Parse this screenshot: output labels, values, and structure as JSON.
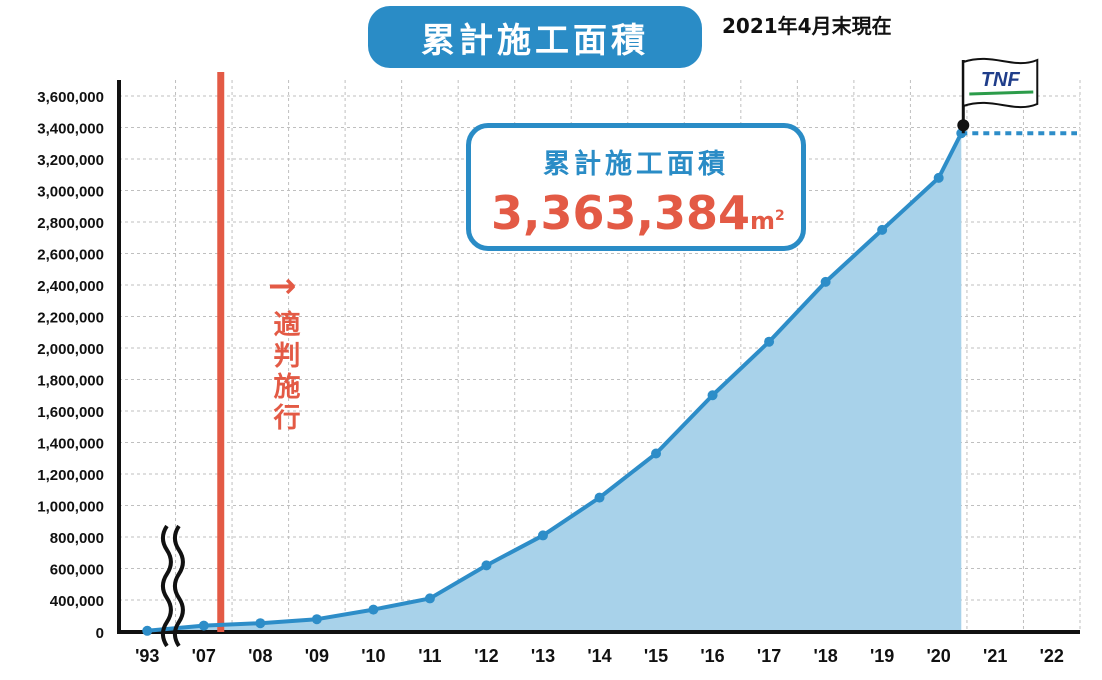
{
  "header": {
    "title": "累計施工面積",
    "as_of": "2021年4月末現在"
  },
  "callout": {
    "label": "累計施工面積",
    "value": "3,363,384",
    "unit": "m",
    "unit_sup": "2"
  },
  "annotation": {
    "arrow": "→",
    "chars": [
      "適",
      "判",
      "施",
      "行"
    ]
  },
  "flag": {
    "text": "TNF"
  },
  "colors": {
    "accent": "#2a8cc6",
    "line": "#2d8dc8",
    "area": "#a8d2ea",
    "law_line": "#e35a45",
    "total_value": "#e35a45",
    "axis": "#111111",
    "grid": "#bfbfbf"
  },
  "chart_data": {
    "type": "area",
    "categories": [
      "'93",
      "'07",
      "'08",
      "'09",
      "'10",
      "'11",
      "'12",
      "'13",
      "'14",
      "'15",
      "'16",
      "'17",
      "'18",
      "'19",
      "'20",
      "'21",
      "'22"
    ],
    "ylim": [
      0,
      3600000
    ],
    "yticks": [
      "0",
      "400,000",
      "600,000",
      "800,000",
      "1,000,000",
      "1,200,000",
      "1,400,000",
      "1,600,000",
      "1,800,000",
      "2,000,000",
      "2,200,000",
      "2,400,000",
      "2,600,000",
      "2,800,000",
      "3,000,000",
      "3,200,000",
      "3,400,000",
      "3,600,000"
    ],
    "ytick_values": [
      0,
      400000,
      600000,
      800000,
      1000000,
      1200000,
      1400000,
      1600000,
      1800000,
      2000000,
      2200000,
      2400000,
      2600000,
      2800000,
      3000000,
      3200000,
      3400000,
      3600000
    ],
    "points": [
      {
        "x": 0.5,
        "y": 15000
      },
      {
        "x": 1.5,
        "y": 80000
      },
      {
        "x": 2.5,
        "y": 110000
      },
      {
        "x": 3.5,
        "y": 160000
      },
      {
        "x": 4.5,
        "y": 280000
      },
      {
        "x": 5.5,
        "y": 410000
      },
      {
        "x": 6.5,
        "y": 620000
      },
      {
        "x": 7.5,
        "y": 810000
      },
      {
        "x": 8.5,
        "y": 1050000
      },
      {
        "x": 9.5,
        "y": 1330000
      },
      {
        "x": 10.5,
        "y": 1700000
      },
      {
        "x": 11.5,
        "y": 2040000
      },
      {
        "x": 12.5,
        "y": 2420000
      },
      {
        "x": 13.5,
        "y": 2750000
      },
      {
        "x": 14.5,
        "y": 3080000
      },
      {
        "x": 14.9,
        "y": 3363384
      }
    ],
    "law_line_x": 1.8,
    "dashed_projection_y": 3363384,
    "break_marker_x": 0.6,
    "grid": true
  }
}
